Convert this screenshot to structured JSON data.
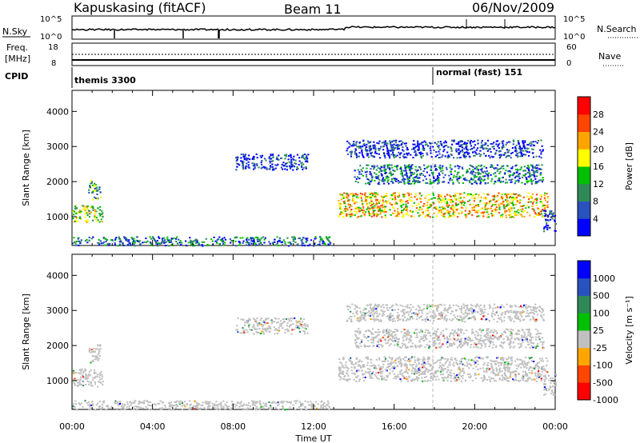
{
  "header": {
    "station": "Kapuskasing (fitACF)",
    "beam": "Beam 11",
    "date": "06/Nov/2009"
  },
  "sky_panel": {
    "left_label": "N.Sky",
    "left_ticks": [
      "10^5",
      "10^0"
    ],
    "right_ticks": [
      "10^5",
      "10^0"
    ],
    "right_label": "N.Search"
  },
  "freq_panel": {
    "left_label_1": "Freq.",
    "left_label_2": "[MHz]",
    "left_ticks": [
      "18",
      "8"
    ],
    "right_ticks": [
      "60",
      "0"
    ],
    "right_label": "Nave"
  },
  "cpid": {
    "label": "CPID",
    "segments": [
      {
        "text": "themis 3300",
        "start_hour": 0
      },
      {
        "text": "normal (fast) 151",
        "start_hour": 18
      }
    ]
  },
  "chart_data": [
    {
      "type": "heatmap",
      "name": "power",
      "ylabel": "Slant Range [km]",
      "ylim": [
        180,
        4600
      ],
      "yticks": [
        1000,
        2000,
        3000,
        4000
      ],
      "xlim": [
        0,
        24
      ],
      "colorbar": {
        "label": "Power [dB]",
        "ticks": [
          "4",
          "8",
          "12",
          "16",
          "20",
          "24",
          "28"
        ],
        "colors": [
          "#0000ff",
          "#2a52be",
          "#2e8b57",
          "#00c000",
          "#ffff00",
          "#ffa500",
          "#ff4500",
          "#ff0000"
        ]
      },
      "regions": [
        {
          "t0": 0.0,
          "t1": 1.5,
          "r0": 850,
          "r1": 1350,
          "level": 4
        },
        {
          "t0": 0.8,
          "t1": 1.4,
          "r0": 1500,
          "r1": 2050,
          "level": 3
        },
        {
          "t0": 8.1,
          "t1": 11.7,
          "r0": 2350,
          "r1": 2800,
          "level": 1
        },
        {
          "t0": 13.2,
          "t1": 23.6,
          "r0": 1000,
          "r1": 1700,
          "level": 5
        },
        {
          "t0": 13.6,
          "t1": 23.4,
          "r0": 2700,
          "r1": 3200,
          "level": 1
        },
        {
          "t0": 14.0,
          "t1": 23.4,
          "r0": 1950,
          "r1": 2500,
          "level": 2
        },
        {
          "t0": 0.0,
          "t1": 12.8,
          "r0": 190,
          "r1": 450,
          "level": 2
        },
        {
          "t0": 23.4,
          "t1": 24.0,
          "r0": 600,
          "r1": 1200,
          "level": 1
        }
      ]
    },
    {
      "type": "heatmap",
      "name": "velocity",
      "ylabel": "Slant Range [km]",
      "ylim": [
        180,
        4600
      ],
      "yticks": [
        1000,
        2000,
        3000,
        4000
      ],
      "xlim": [
        0,
        24
      ],
      "colorbar": {
        "label": "Velocity [m s⁻¹]",
        "ticks": [
          "1000",
          "500",
          "100",
          "25",
          "-25",
          "-100",
          "-500",
          "-1000"
        ],
        "colors": [
          "#0000ff",
          "#2a52be",
          "#2e8b57",
          "#00c000",
          "#c0c0c0",
          "#ffa500",
          "#ff4500",
          "#ff0000"
        ]
      },
      "regions": [
        {
          "t0": 0.0,
          "t1": 1.5,
          "r0": 850,
          "r1": 1350,
          "level": 4
        },
        {
          "t0": 0.8,
          "t1": 1.4,
          "r0": 1500,
          "r1": 2050,
          "level": 4
        },
        {
          "t0": 8.1,
          "t1": 11.7,
          "r0": 2350,
          "r1": 2800,
          "level": 4
        },
        {
          "t0": 13.2,
          "t1": 23.6,
          "r0": 1000,
          "r1": 1700,
          "level": 4
        },
        {
          "t0": 13.6,
          "t1": 23.4,
          "r0": 2700,
          "r1": 3200,
          "level": 4
        },
        {
          "t0": 14.0,
          "t1": 23.4,
          "r0": 1950,
          "r1": 2500,
          "level": 4
        },
        {
          "t0": 0.0,
          "t1": 12.8,
          "r0": 190,
          "r1": 450,
          "level": 4
        },
        {
          "t0": 23.4,
          "t1": 24.0,
          "r0": 600,
          "r1": 1200,
          "level": 4
        }
      ]
    }
  ],
  "xaxis": {
    "ticks": [
      "00:00",
      "04:00",
      "08:00",
      "12:00",
      "16:00",
      "20:00",
      "00:00"
    ],
    "label": "Time UT"
  }
}
